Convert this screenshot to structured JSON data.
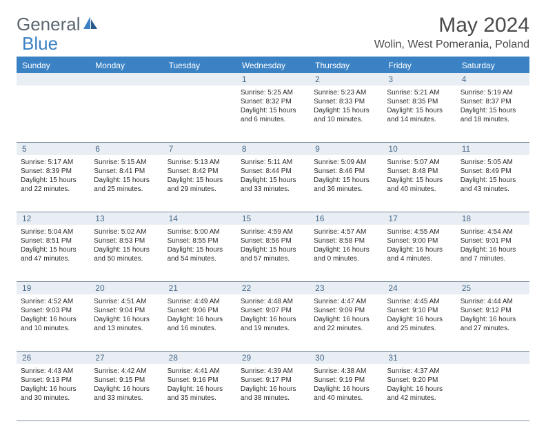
{
  "logo": {
    "first": "General",
    "last": "Blue"
  },
  "title": "May 2024",
  "location": "Wolin, West Pomerania, Poland",
  "colors": {
    "accent": "#3b82c4",
    "header_bg": "#3b82c4",
    "header_text": "#ffffff",
    "daynum_bg": "#e8eef4",
    "daynum_text": "#4a6a8a",
    "border": "#7a8a9a",
    "text": "#2a2a2a",
    "logo_gray": "#5a6570"
  },
  "day_names": [
    "Sunday",
    "Monday",
    "Tuesday",
    "Wednesday",
    "Thursday",
    "Friday",
    "Saturday"
  ],
  "weeks": [
    [
      null,
      null,
      null,
      {
        "n": "1",
        "sr": "Sunrise: 5:25 AM",
        "ss": "Sunset: 8:32 PM",
        "d1": "Daylight: 15 hours",
        "d2": "and 6 minutes."
      },
      {
        "n": "2",
        "sr": "Sunrise: 5:23 AM",
        "ss": "Sunset: 8:33 PM",
        "d1": "Daylight: 15 hours",
        "d2": "and 10 minutes."
      },
      {
        "n": "3",
        "sr": "Sunrise: 5:21 AM",
        "ss": "Sunset: 8:35 PM",
        "d1": "Daylight: 15 hours",
        "d2": "and 14 minutes."
      },
      {
        "n": "4",
        "sr": "Sunrise: 5:19 AM",
        "ss": "Sunset: 8:37 PM",
        "d1": "Daylight: 15 hours",
        "d2": "and 18 minutes."
      }
    ],
    [
      {
        "n": "5",
        "sr": "Sunrise: 5:17 AM",
        "ss": "Sunset: 8:39 PM",
        "d1": "Daylight: 15 hours",
        "d2": "and 22 minutes."
      },
      {
        "n": "6",
        "sr": "Sunrise: 5:15 AM",
        "ss": "Sunset: 8:41 PM",
        "d1": "Daylight: 15 hours",
        "d2": "and 25 minutes."
      },
      {
        "n": "7",
        "sr": "Sunrise: 5:13 AM",
        "ss": "Sunset: 8:42 PM",
        "d1": "Daylight: 15 hours",
        "d2": "and 29 minutes."
      },
      {
        "n": "8",
        "sr": "Sunrise: 5:11 AM",
        "ss": "Sunset: 8:44 PM",
        "d1": "Daylight: 15 hours",
        "d2": "and 33 minutes."
      },
      {
        "n": "9",
        "sr": "Sunrise: 5:09 AM",
        "ss": "Sunset: 8:46 PM",
        "d1": "Daylight: 15 hours",
        "d2": "and 36 minutes."
      },
      {
        "n": "10",
        "sr": "Sunrise: 5:07 AM",
        "ss": "Sunset: 8:48 PM",
        "d1": "Daylight: 15 hours",
        "d2": "and 40 minutes."
      },
      {
        "n": "11",
        "sr": "Sunrise: 5:05 AM",
        "ss": "Sunset: 8:49 PM",
        "d1": "Daylight: 15 hours",
        "d2": "and 43 minutes."
      }
    ],
    [
      {
        "n": "12",
        "sr": "Sunrise: 5:04 AM",
        "ss": "Sunset: 8:51 PM",
        "d1": "Daylight: 15 hours",
        "d2": "and 47 minutes."
      },
      {
        "n": "13",
        "sr": "Sunrise: 5:02 AM",
        "ss": "Sunset: 8:53 PM",
        "d1": "Daylight: 15 hours",
        "d2": "and 50 minutes."
      },
      {
        "n": "14",
        "sr": "Sunrise: 5:00 AM",
        "ss": "Sunset: 8:55 PM",
        "d1": "Daylight: 15 hours",
        "d2": "and 54 minutes."
      },
      {
        "n": "15",
        "sr": "Sunrise: 4:59 AM",
        "ss": "Sunset: 8:56 PM",
        "d1": "Daylight: 15 hours",
        "d2": "and 57 minutes."
      },
      {
        "n": "16",
        "sr": "Sunrise: 4:57 AM",
        "ss": "Sunset: 8:58 PM",
        "d1": "Daylight: 16 hours",
        "d2": "and 0 minutes."
      },
      {
        "n": "17",
        "sr": "Sunrise: 4:55 AM",
        "ss": "Sunset: 9:00 PM",
        "d1": "Daylight: 16 hours",
        "d2": "and 4 minutes."
      },
      {
        "n": "18",
        "sr": "Sunrise: 4:54 AM",
        "ss": "Sunset: 9:01 PM",
        "d1": "Daylight: 16 hours",
        "d2": "and 7 minutes."
      }
    ],
    [
      {
        "n": "19",
        "sr": "Sunrise: 4:52 AM",
        "ss": "Sunset: 9:03 PM",
        "d1": "Daylight: 16 hours",
        "d2": "and 10 minutes."
      },
      {
        "n": "20",
        "sr": "Sunrise: 4:51 AM",
        "ss": "Sunset: 9:04 PM",
        "d1": "Daylight: 16 hours",
        "d2": "and 13 minutes."
      },
      {
        "n": "21",
        "sr": "Sunrise: 4:49 AM",
        "ss": "Sunset: 9:06 PM",
        "d1": "Daylight: 16 hours",
        "d2": "and 16 minutes."
      },
      {
        "n": "22",
        "sr": "Sunrise: 4:48 AM",
        "ss": "Sunset: 9:07 PM",
        "d1": "Daylight: 16 hours",
        "d2": "and 19 minutes."
      },
      {
        "n": "23",
        "sr": "Sunrise: 4:47 AM",
        "ss": "Sunset: 9:09 PM",
        "d1": "Daylight: 16 hours",
        "d2": "and 22 minutes."
      },
      {
        "n": "24",
        "sr": "Sunrise: 4:45 AM",
        "ss": "Sunset: 9:10 PM",
        "d1": "Daylight: 16 hours",
        "d2": "and 25 minutes."
      },
      {
        "n": "25",
        "sr": "Sunrise: 4:44 AM",
        "ss": "Sunset: 9:12 PM",
        "d1": "Daylight: 16 hours",
        "d2": "and 27 minutes."
      }
    ],
    [
      {
        "n": "26",
        "sr": "Sunrise: 4:43 AM",
        "ss": "Sunset: 9:13 PM",
        "d1": "Daylight: 16 hours",
        "d2": "and 30 minutes."
      },
      {
        "n": "27",
        "sr": "Sunrise: 4:42 AM",
        "ss": "Sunset: 9:15 PM",
        "d1": "Daylight: 16 hours",
        "d2": "and 33 minutes."
      },
      {
        "n": "28",
        "sr": "Sunrise: 4:41 AM",
        "ss": "Sunset: 9:16 PM",
        "d1": "Daylight: 16 hours",
        "d2": "and 35 minutes."
      },
      {
        "n": "29",
        "sr": "Sunrise: 4:39 AM",
        "ss": "Sunset: 9:17 PM",
        "d1": "Daylight: 16 hours",
        "d2": "and 38 minutes."
      },
      {
        "n": "30",
        "sr": "Sunrise: 4:38 AM",
        "ss": "Sunset: 9:19 PM",
        "d1": "Daylight: 16 hours",
        "d2": "and 40 minutes."
      },
      {
        "n": "31",
        "sr": "Sunrise: 4:37 AM",
        "ss": "Sunset: 9:20 PM",
        "d1": "Daylight: 16 hours",
        "d2": "and 42 minutes."
      },
      null
    ]
  ]
}
